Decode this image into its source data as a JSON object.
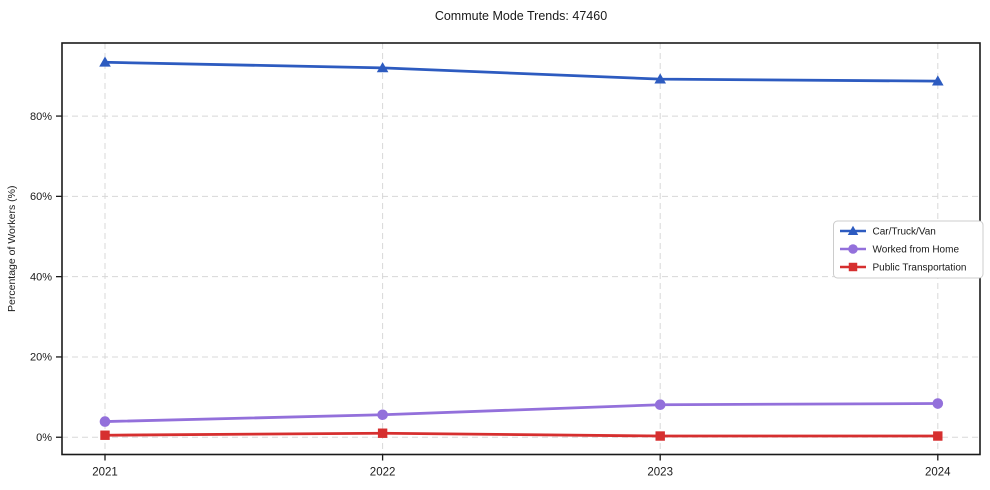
{
  "chart_data": {
    "type": "line",
    "title": "Commute Mode Trends: 47460",
    "xlabel": "",
    "ylabel": "Percentage of Workers (%)",
    "x": [
      "2021",
      "2022",
      "2023",
      "2024"
    ],
    "series": [
      {
        "name": "Car/Truck/Van",
        "marker": "triangle",
        "color": "#2d5bc0",
        "values": [
          93.4,
          92.0,
          89.2,
          88.7
        ]
      },
      {
        "name": "Worked from Home",
        "marker": "circle",
        "color": "#9370db",
        "values": [
          3.9,
          5.6,
          8.1,
          8.4
        ]
      },
      {
        "name": "Public Transportation",
        "marker": "square",
        "color": "#d62f2f",
        "values": [
          0.5,
          1.0,
          0.3,
          0.3
        ]
      }
    ],
    "yticks": {
      "values": [
        0,
        20,
        40,
        60,
        80
      ],
      "labels": [
        "0%",
        "20%",
        "40%",
        "60%",
        "80%"
      ]
    },
    "ylim": [
      -4.3,
      98.2
    ],
    "grid": {
      "style": "dashed",
      "color": "#d8d8d8"
    },
    "legend": {
      "position": "center-right",
      "background": "#ffffff",
      "border_color": "#cccccc"
    }
  }
}
